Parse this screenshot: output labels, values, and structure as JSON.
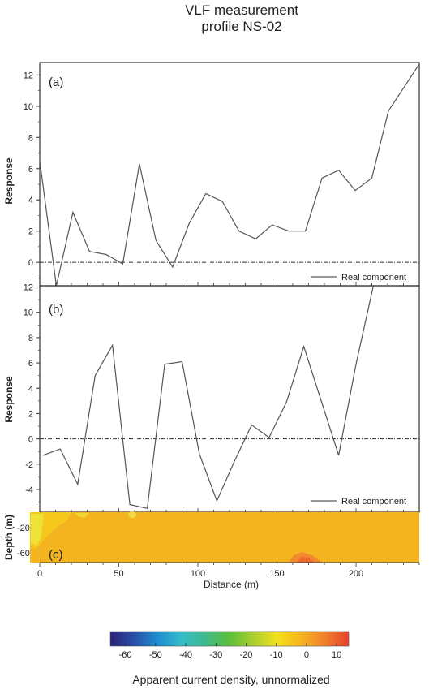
{
  "title_lines": [
    "VLF measurement",
    "profile NS-02"
  ],
  "chart_data": [
    {
      "panel": "(a)",
      "type": "line",
      "ylabel": "Response",
      "xlim": [
        0,
        240
      ],
      "ylim": [
        -1.5,
        12.8
      ],
      "yticks": [
        "0",
        "2",
        "4",
        "6",
        "8",
        "10",
        "12"
      ],
      "zero_line": true,
      "grid": false,
      "legend_position": "bottom-right",
      "series": [
        {
          "name": "Real component",
          "x": [
            0,
            10.5,
            21,
            31.5,
            42,
            52.5,
            63,
            73.5,
            84,
            94.5,
            105,
            115.5,
            126,
            136.5,
            147,
            157.5,
            168,
            178.5,
            189,
            199.5,
            210,
            220.5,
            240
          ],
          "y": [
            6.5,
            -1.6,
            3.2,
            0.7,
            0.5,
            -0.1,
            6.3,
            1.4,
            -0.3,
            2.5,
            4.4,
            3.9,
            2.0,
            1.5,
            2.4,
            2.0,
            2.0,
            5.4,
            5.9,
            4.6,
            5.4,
            9.7,
            12.7
          ]
        }
      ]
    },
    {
      "panel": "(b)",
      "type": "line",
      "ylabel": "Response",
      "xlabel": "Distance (m)",
      "xlim": [
        0,
        240
      ],
      "ylim": [
        -5.8,
        12.1
      ],
      "xticks": [
        "0",
        "50",
        "100",
        "150",
        "200"
      ],
      "yticks": [
        "-4",
        "-2",
        "0",
        "2",
        "4",
        "6",
        "8",
        "10",
        "12"
      ],
      "zero_line": true,
      "grid": false,
      "legend_position": "bottom-right",
      "series": [
        {
          "name": "Real component",
          "x": [
            2,
            13,
            24,
            35,
            46,
            57,
            68,
            79,
            90,
            101,
            112,
            123,
            134,
            145,
            156,
            167,
            178,
            189,
            200,
            211,
            222
          ],
          "y": [
            -1.3,
            -0.8,
            -3.6,
            5.0,
            7.4,
            -5.2,
            -5.5,
            5.9,
            6.1,
            -1.2,
            -4.9,
            -1.8,
            1.1,
            0.1,
            2.9,
            7.3,
            3.0,
            -1.3,
            5.9,
            12.3,
            12.3
          ]
        }
      ]
    },
    {
      "panel": "(c)",
      "type": "heatmap",
      "ylabel": "Depth (m)",
      "xlabel": "Distance (m)",
      "xlim": [
        0,
        240
      ],
      "yticks": [
        "-20",
        "-60"
      ],
      "colorbar": {
        "label": "Apparent current density, unnormalized",
        "range": [
          -65,
          14
        ],
        "ticks": [
          "-60",
          "-50",
          "-40",
          "-30",
          "-20",
          "-10",
          "0",
          "10"
        ],
        "colors": [
          "#2a2178",
          "#2a4fa8",
          "#1f8fd0",
          "#35bcc8",
          "#3fb98a",
          "#5cbf3a",
          "#a9cf2e",
          "#f3e11d",
          "#f5b41f",
          "#f0802a",
          "#e8412f"
        ]
      },
      "background_value": 2,
      "anomalies": [
        {
          "description": "yellow near-surface patch",
          "distance_m": [
            0,
            20
          ],
          "value": -6
        },
        {
          "description": "light yellow patch",
          "distance_m": [
            68,
            75
          ],
          "value": -6
        },
        {
          "description": "orange deep patch",
          "distance_m": [
            160,
            178
          ],
          "value": 8
        }
      ]
    }
  ]
}
